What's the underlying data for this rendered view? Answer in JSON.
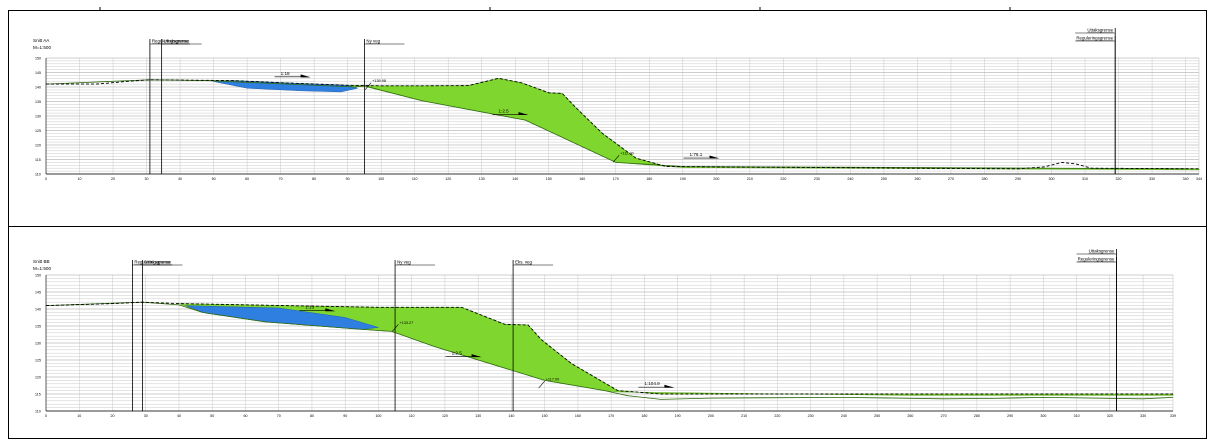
{
  "colors": {
    "fill_green": "#7fd62e",
    "fill_blue": "#2f7fe0",
    "grid": "#bdbdbd",
    "frame": "#000000"
  },
  "sections": [
    {
      "id": "aa",
      "title": "Snitt AA",
      "scale": "M=1:500",
      "x_ticks": [
        0,
        10,
        20,
        30,
        40,
        50,
        60,
        70,
        80,
        90,
        100,
        110,
        120,
        130,
        140,
        150,
        160,
        170,
        180,
        190,
        200,
        210,
        220,
        230,
        240,
        250,
        260,
        270,
        280,
        290,
        300,
        310,
        320,
        330,
        340,
        344
      ],
      "y_ticks": [
        110,
        115,
        120,
        125,
        130,
        135,
        140,
        145,
        150
      ],
      "markers": [
        {
          "label": "Reguleringsgrense",
          "x": 31
        },
        {
          "label": "Uttaksgrense",
          "x": 34.5
        },
        {
          "label": "Ny veg",
          "x": 95
        },
        {
          "label": "Uttaksgrense",
          "x": 319,
          "row": 1
        },
        {
          "label": "Reguleringsgrense",
          "x": 319,
          "row": 2
        }
      ],
      "slopes": [
        {
          "label": "1:18",
          "x": 70,
          "y": 143.5
        },
        {
          "label": "1:2.5",
          "x": 135,
          "y": 130.5
        },
        {
          "label": "1:76.1",
          "x": 192,
          "y": 115.5
        }
      ],
      "points": [
        {
          "label": "+139.98",
          "x": 97,
          "y": 141.5
        },
        {
          "label": "+112.00",
          "x": 171,
          "y": 116.5
        }
      ],
      "existing": [
        [
          0,
          141
        ],
        [
          15,
          141
        ],
        [
          25,
          142
        ],
        [
          31,
          142.5
        ],
        [
          56,
          142.2
        ],
        [
          70,
          141.5
        ],
        [
          90,
          140.6
        ],
        [
          100,
          140.4
        ],
        [
          112,
          140.4
        ],
        [
          126,
          140.5
        ],
        [
          135,
          143
        ],
        [
          142,
          141.4
        ],
        [
          150,
          138
        ],
        [
          154,
          137.8
        ],
        [
          158,
          133
        ],
        [
          166,
          124
        ],
        [
          176,
          115.5
        ],
        [
          185,
          112.6
        ],
        [
          260,
          112
        ],
        [
          290,
          111.8
        ],
        [
          298,
          112.5
        ],
        [
          303,
          114
        ],
        [
          307,
          113.5
        ],
        [
          312,
          112
        ],
        [
          344,
          111.8
        ]
      ],
      "new_ground": [
        [
          0,
          141
        ],
        [
          31,
          142.5
        ],
        [
          48,
          142.2
        ],
        [
          92,
          140
        ],
        [
          95,
          140.4
        ],
        [
          112,
          135.3
        ],
        [
          143,
          128.6
        ],
        [
          170,
          114
        ],
        [
          190,
          112.6
        ],
        [
          340,
          111.8
        ]
      ],
      "green": [
        [
          31,
          142.5
        ],
        [
          56,
          142.2
        ],
        [
          70,
          141.5
        ],
        [
          90,
          140.6
        ],
        [
          100,
          140.4
        ],
        [
          112,
          140.4
        ],
        [
          126,
          140.5
        ],
        [
          135,
          143
        ],
        [
          142,
          141.4
        ],
        [
          150,
          138
        ],
        [
          154,
          137.8
        ],
        [
          158,
          133
        ],
        [
          166,
          124
        ],
        [
          176,
          115.5
        ],
        [
          185,
          112.6
        ],
        [
          260,
          112
        ],
        [
          344,
          111.8
        ],
        [
          344,
          111.4
        ],
        [
          190,
          112.2
        ],
        [
          170,
          114
        ],
        [
          143,
          128.6
        ],
        [
          112,
          135.3
        ],
        [
          95,
          140.2
        ],
        [
          92,
          140
        ],
        [
          48,
          142.2
        ],
        [
          31,
          142.5
        ]
      ],
      "blue": [
        [
          50,
          141.9
        ],
        [
          60,
          139.6
        ],
        [
          76,
          138.7
        ],
        [
          88,
          138.3
        ],
        [
          93,
          139.6
        ],
        [
          90,
          140.6
        ],
        [
          70,
          141.5
        ],
        [
          56,
          142.2
        ]
      ]
    },
    {
      "id": "bb",
      "title": "Snitt BB",
      "scale": "M=1:500",
      "x_ticks": [
        0,
        10,
        20,
        30,
        40,
        50,
        60,
        70,
        80,
        90,
        100,
        110,
        120,
        130,
        140,
        150,
        160,
        170,
        180,
        190,
        200,
        210,
        220,
        230,
        240,
        250,
        260,
        270,
        280,
        290,
        300,
        310,
        320,
        330,
        339
      ],
      "y_ticks": [
        110,
        115,
        120,
        125,
        130,
        135,
        140,
        145,
        150
      ],
      "markers": [
        {
          "label": "Reguleringsgrense",
          "x": 26
        },
        {
          "label": "Uttaksgrense",
          "x": 29
        },
        {
          "label": "Ny veg",
          "x": 105
        },
        {
          "label": "Eks. veg",
          "x": 140.5
        },
        {
          "label": "Uttaksgrense",
          "x": 322,
          "row": 1
        },
        {
          "label": "Reguleringsgrense",
          "x": 322,
          "row": 2
        }
      ],
      "slopes": [
        {
          "label": "1:13",
          "x": 78,
          "y": 139.5
        },
        {
          "label": "1:2.5",
          "x": 122,
          "y": 126
        },
        {
          "label": "1:104.9",
          "x": 180,
          "y": 117
        }
      ],
      "points": [
        {
          "label": "+133.27",
          "x": 106,
          "y": 135.5
        },
        {
          "label": "+117.00",
          "x": 150,
          "y": 118.8
        }
      ],
      "existing": [
        [
          0,
          141
        ],
        [
          20,
          141.6
        ],
        [
          29,
          142
        ],
        [
          40,
          141.6
        ],
        [
          100,
          140.5
        ],
        [
          125,
          140.5
        ],
        [
          138,
          135.5
        ],
        [
          145,
          135.3
        ],
        [
          149,
          131
        ],
        [
          158,
          124
        ],
        [
          172,
          116
        ],
        [
          185,
          115
        ],
        [
          260,
          115
        ],
        [
          339,
          115
        ]
      ],
      "new_ground": [
        [
          0,
          141
        ],
        [
          29,
          142
        ],
        [
          40,
          141.2
        ],
        [
          47,
          139
        ],
        [
          66,
          136.2
        ],
        [
          95,
          134
        ],
        [
          104,
          133.4
        ],
        [
          117,
          128.9
        ],
        [
          150,
          119
        ],
        [
          168,
          116
        ],
        [
          175,
          114.5
        ],
        [
          185,
          113.4
        ],
        [
          200,
          113.8
        ],
        [
          240,
          114
        ],
        [
          270,
          113.6
        ],
        [
          285,
          113.7
        ],
        [
          300,
          114
        ],
        [
          315,
          113.8
        ],
        [
          330,
          113.6
        ],
        [
          339,
          114
        ]
      ],
      "green": [
        [
          40,
          141.6
        ],
        [
          100,
          140.5
        ],
        [
          125,
          140.5
        ],
        [
          138,
          135.5
        ],
        [
          145,
          135.3
        ],
        [
          149,
          131
        ],
        [
          158,
          124
        ],
        [
          172,
          116
        ],
        [
          185,
          115
        ],
        [
          260,
          115
        ],
        [
          339,
          115
        ],
        [
          339,
          114.6
        ],
        [
          260,
          114.6
        ],
        [
          172,
          115.6
        ],
        [
          168,
          116
        ],
        [
          150,
          119
        ],
        [
          117,
          128.9
        ],
        [
          104,
          133.4
        ],
        [
          95,
          134
        ],
        [
          66,
          136.2
        ],
        [
          47,
          139
        ]
      ],
      "blue": [
        [
          42,
          141
        ],
        [
          48,
          138.8
        ],
        [
          66,
          136.2
        ],
        [
          95,
          134
        ],
        [
          100,
          134.6
        ],
        [
          90,
          137.5
        ],
        [
          70,
          140.3
        ]
      ]
    }
  ]
}
